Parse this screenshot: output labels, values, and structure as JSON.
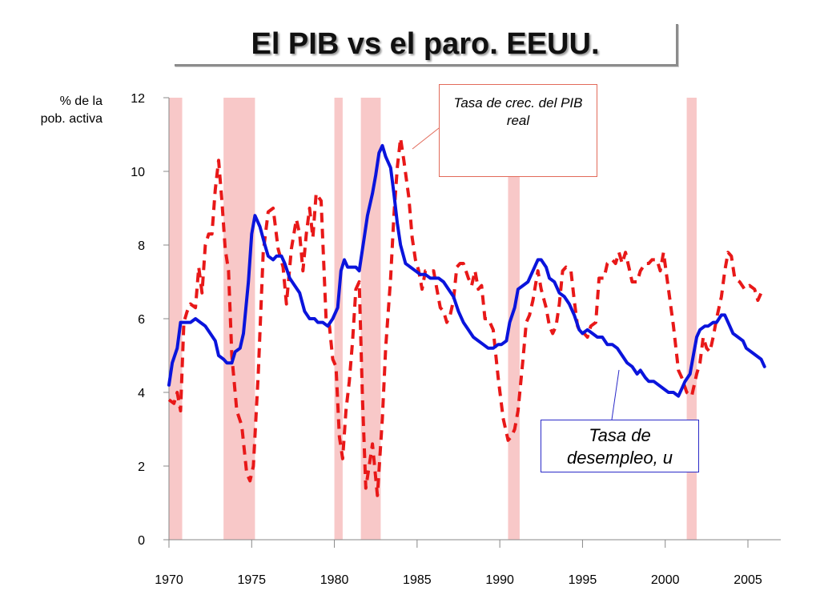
{
  "title": "El PIB vs el paro. EEUU.",
  "colors": {
    "unemployment": "#0a14dc",
    "gdp": "#e81818",
    "recession": "#f8c8c8"
  },
  "chart_data": {
    "type": "line",
    "ylabel": "% de la pob. activa",
    "xlabel": "",
    "x_ticks": [
      "1970",
      "1975",
      "1980",
      "1985",
      "1990",
      "1995",
      "2000",
      "2005"
    ],
    "y_ticks": [
      "0",
      "2",
      "4",
      "6",
      "8",
      "10",
      "12"
    ],
    "xlim": [
      1970,
      2007.5
    ],
    "ylim": [
      0,
      12
    ],
    "grid": false,
    "recession_periods": [
      [
        1970.0,
        1970.8
      ],
      [
        1973.3,
        1975.2
      ],
      [
        1980.0,
        1980.5
      ],
      [
        1981.6,
        1982.8
      ],
      [
        1990.5,
        1991.2
      ],
      [
        2001.3,
        2001.9
      ]
    ],
    "series": [
      {
        "name": "Tasa de crec. del PIB real",
        "style": "dashed",
        "points": [
          [
            1970.0,
            3.8
          ],
          [
            1970.3,
            3.7
          ],
          [
            1970.5,
            4.0
          ],
          [
            1970.7,
            3.5
          ],
          [
            1970.9,
            5.9
          ],
          [
            1971.1,
            6.2
          ],
          [
            1971.3,
            6.4
          ],
          [
            1971.6,
            6.3
          ],
          [
            1971.8,
            7.4
          ],
          [
            1972.0,
            6.7
          ],
          [
            1972.2,
            8.0
          ],
          [
            1972.4,
            8.3
          ],
          [
            1972.6,
            8.3
          ],
          [
            1972.8,
            9.5
          ],
          [
            1973.0,
            10.3
          ],
          [
            1973.2,
            9.2
          ],
          [
            1973.4,
            7.9
          ],
          [
            1973.6,
            7.3
          ],
          [
            1973.8,
            5.0
          ],
          [
            1974.1,
            3.5
          ],
          [
            1974.4,
            3.1
          ],
          [
            1974.7,
            1.8
          ],
          [
            1974.9,
            1.6
          ],
          [
            1975.1,
            2.0
          ],
          [
            1975.4,
            4.5
          ],
          [
            1975.7,
            7.8
          ],
          [
            1976.0,
            8.9
          ],
          [
            1976.3,
            9.0
          ],
          [
            1976.6,
            7.9
          ],
          [
            1976.9,
            7.4
          ],
          [
            1977.1,
            6.4
          ],
          [
            1977.4,
            7.9
          ],
          [
            1977.7,
            8.7
          ],
          [
            1977.9,
            8.3
          ],
          [
            1978.1,
            7.3
          ],
          [
            1978.3,
            8.3
          ],
          [
            1978.5,
            9.0
          ],
          [
            1978.7,
            8.2
          ],
          [
            1978.9,
            9.4
          ],
          [
            1979.2,
            9.2
          ],
          [
            1979.5,
            6.0
          ],
          [
            1979.7,
            5.8
          ],
          [
            1979.9,
            4.9
          ],
          [
            1980.1,
            4.7
          ],
          [
            1980.3,
            2.8
          ],
          [
            1980.5,
            2.2
          ],
          [
            1980.7,
            3.5
          ],
          [
            1980.9,
            4.3
          ],
          [
            1981.1,
            5.4
          ],
          [
            1981.3,
            6.8
          ],
          [
            1981.5,
            7.0
          ],
          [
            1981.7,
            3.8
          ],
          [
            1981.9,
            1.4
          ],
          [
            1982.1,
            2.0
          ],
          [
            1982.3,
            2.6
          ],
          [
            1982.6,
            1.2
          ],
          [
            1982.9,
            3.3
          ],
          [
            1983.1,
            5.2
          ],
          [
            1983.4,
            7.1
          ],
          [
            1983.6,
            8.8
          ],
          [
            1983.8,
            10.1
          ],
          [
            1984.0,
            10.9
          ],
          [
            1984.2,
            10.3
          ],
          [
            1984.5,
            9.3
          ],
          [
            1984.7,
            8.2
          ],
          [
            1984.9,
            7.6
          ],
          [
            1985.1,
            7.3
          ],
          [
            1985.3,
            6.8
          ],
          [
            1985.5,
            7.3
          ],
          [
            1985.8,
            7.3
          ],
          [
            1986.0,
            7.3
          ],
          [
            1986.2,
            6.8
          ],
          [
            1986.4,
            6.3
          ],
          [
            1986.6,
            6.2
          ],
          [
            1986.8,
            5.9
          ],
          [
            1987.0,
            6.1
          ],
          [
            1987.2,
            6.5
          ],
          [
            1987.4,
            7.4
          ],
          [
            1987.6,
            7.5
          ],
          [
            1987.8,
            7.5
          ],
          [
            1988.1,
            7.1
          ],
          [
            1988.3,
            6.9
          ],
          [
            1988.5,
            7.3
          ],
          [
            1988.7,
            6.8
          ],
          [
            1988.9,
            6.9
          ],
          [
            1989.1,
            6.0
          ],
          [
            1989.3,
            6.0
          ],
          [
            1989.6,
            5.7
          ],
          [
            1989.9,
            4.4
          ],
          [
            1990.2,
            3.3
          ],
          [
            1990.5,
            2.7
          ],
          [
            1990.7,
            2.8
          ],
          [
            1990.9,
            3.0
          ],
          [
            1991.1,
            3.5
          ],
          [
            1991.4,
            4.9
          ],
          [
            1991.6,
            5.9
          ],
          [
            1991.8,
            6.1
          ],
          [
            1992.0,
            6.5
          ],
          [
            1992.3,
            7.3
          ],
          [
            1992.5,
            6.8
          ],
          [
            1992.8,
            6.3
          ],
          [
            1993.0,
            5.8
          ],
          [
            1993.2,
            5.6
          ],
          [
            1993.4,
            5.8
          ],
          [
            1993.6,
            6.4
          ],
          [
            1993.8,
            7.3
          ],
          [
            1994.0,
            7.4
          ],
          [
            1994.3,
            7.3
          ],
          [
            1994.5,
            6.5
          ],
          [
            1994.7,
            5.8
          ],
          [
            1994.9,
            5.6
          ],
          [
            1995.1,
            5.6
          ],
          [
            1995.3,
            5.5
          ],
          [
            1995.5,
            5.8
          ],
          [
            1995.8,
            5.9
          ],
          [
            1996.0,
            7.1
          ],
          [
            1996.3,
            7.1
          ],
          [
            1996.5,
            7.5
          ],
          [
            1996.8,
            7.6
          ],
          [
            1997.0,
            7.5
          ],
          [
            1997.2,
            7.8
          ],
          [
            1997.4,
            7.5
          ],
          [
            1997.6,
            7.8
          ],
          [
            1997.8,
            7.4
          ],
          [
            1998.0,
            7.0
          ],
          [
            1998.3,
            7.0
          ],
          [
            1998.5,
            7.3
          ],
          [
            1998.8,
            7.5
          ],
          [
            1999.0,
            7.5
          ],
          [
            1999.2,
            7.6
          ],
          [
            1999.5,
            7.6
          ],
          [
            1999.7,
            7.3
          ],
          [
            1999.9,
            7.8
          ],
          [
            2000.2,
            6.8
          ],
          [
            2000.5,
            5.8
          ],
          [
            2000.8,
            4.6
          ],
          [
            2001.0,
            4.4
          ],
          [
            2001.3,
            4.0
          ],
          [
            2001.6,
            3.9
          ],
          [
            2001.9,
            4.5
          ],
          [
            2002.1,
            4.8
          ],
          [
            2002.3,
            5.5
          ],
          [
            2002.5,
            5.2
          ],
          [
            2002.7,
            5.1
          ],
          [
            2002.9,
            5.5
          ],
          [
            2003.1,
            6.0
          ],
          [
            2003.4,
            6.6
          ],
          [
            2003.6,
            7.3
          ],
          [
            2003.8,
            7.8
          ],
          [
            2004.0,
            7.7
          ],
          [
            2004.2,
            7.1
          ],
          [
            2004.5,
            7.0
          ],
          [
            2004.8,
            6.8
          ],
          [
            2005.1,
            6.9
          ],
          [
            2005.4,
            6.8
          ],
          [
            2005.6,
            6.5
          ],
          [
            2005.9,
            6.8
          ]
        ]
      },
      {
        "name": "Tasa de desempleo, u",
        "style": "solid",
        "points": [
          [
            1970.0,
            4.2
          ],
          [
            1970.2,
            4.8
          ],
          [
            1970.5,
            5.2
          ],
          [
            1970.7,
            5.9
          ],
          [
            1971.0,
            5.9
          ],
          [
            1971.3,
            5.9
          ],
          [
            1971.6,
            6.0
          ],
          [
            1971.9,
            5.9
          ],
          [
            1972.2,
            5.8
          ],
          [
            1972.5,
            5.6
          ],
          [
            1972.8,
            5.4
          ],
          [
            1973.0,
            5.0
          ],
          [
            1973.3,
            4.9
          ],
          [
            1973.5,
            4.8
          ],
          [
            1973.8,
            4.8
          ],
          [
            1974.0,
            5.1
          ],
          [
            1974.3,
            5.2
          ],
          [
            1974.5,
            5.6
          ],
          [
            1974.8,
            7.0
          ],
          [
            1975.0,
            8.3
          ],
          [
            1975.2,
            8.8
          ],
          [
            1975.5,
            8.5
          ],
          [
            1975.8,
            8.0
          ],
          [
            1976.0,
            7.7
          ],
          [
            1976.3,
            7.6
          ],
          [
            1976.5,
            7.7
          ],
          [
            1976.8,
            7.7
          ],
          [
            1977.0,
            7.5
          ],
          [
            1977.3,
            7.1
          ],
          [
            1977.6,
            6.9
          ],
          [
            1977.9,
            6.7
          ],
          [
            1978.2,
            6.2
          ],
          [
            1978.5,
            6.0
          ],
          [
            1978.8,
            6.0
          ],
          [
            1979.0,
            5.9
          ],
          [
            1979.3,
            5.9
          ],
          [
            1979.6,
            5.8
          ],
          [
            1979.9,
            6.0
          ],
          [
            1980.2,
            6.3
          ],
          [
            1980.4,
            7.3
          ],
          [
            1980.6,
            7.6
          ],
          [
            1980.8,
            7.4
          ],
          [
            1981.0,
            7.4
          ],
          [
            1981.3,
            7.4
          ],
          [
            1981.5,
            7.3
          ],
          [
            1981.8,
            8.2
          ],
          [
            1982.0,
            8.8
          ],
          [
            1982.3,
            9.4
          ],
          [
            1982.5,
            9.9
          ],
          [
            1982.7,
            10.5
          ],
          [
            1982.9,
            10.7
          ],
          [
            1983.1,
            10.4
          ],
          [
            1983.4,
            10.1
          ],
          [
            1983.6,
            9.4
          ],
          [
            1983.8,
            8.6
          ],
          [
            1984.0,
            8.0
          ],
          [
            1984.3,
            7.5
          ],
          [
            1984.6,
            7.4
          ],
          [
            1984.9,
            7.3
          ],
          [
            1985.2,
            7.2
          ],
          [
            1985.5,
            7.2
          ],
          [
            1985.8,
            7.1
          ],
          [
            1986.0,
            7.1
          ],
          [
            1986.3,
            7.1
          ],
          [
            1986.6,
            7.0
          ],
          [
            1986.9,
            6.8
          ],
          [
            1987.2,
            6.6
          ],
          [
            1987.5,
            6.2
          ],
          [
            1987.8,
            5.9
          ],
          [
            1988.1,
            5.7
          ],
          [
            1988.4,
            5.5
          ],
          [
            1988.7,
            5.4
          ],
          [
            1989.0,
            5.3
          ],
          [
            1989.3,
            5.2
          ],
          [
            1989.6,
            5.2
          ],
          [
            1989.9,
            5.3
          ],
          [
            1990.1,
            5.3
          ],
          [
            1990.4,
            5.4
          ],
          [
            1990.6,
            5.9
          ],
          [
            1990.9,
            6.3
          ],
          [
            1991.1,
            6.8
          ],
          [
            1991.4,
            6.9
          ],
          [
            1991.7,
            7.0
          ],
          [
            1992.0,
            7.3
          ],
          [
            1992.3,
            7.6
          ],
          [
            1992.5,
            7.6
          ],
          [
            1992.8,
            7.4
          ],
          [
            1993.0,
            7.1
          ],
          [
            1993.3,
            7.0
          ],
          [
            1993.6,
            6.7
          ],
          [
            1993.9,
            6.6
          ],
          [
            1994.2,
            6.4
          ],
          [
            1994.5,
            6.1
          ],
          [
            1994.8,
            5.7
          ],
          [
            1995.0,
            5.6
          ],
          [
            1995.3,
            5.7
          ],
          [
            1995.6,
            5.6
          ],
          [
            1995.9,
            5.5
          ],
          [
            1996.2,
            5.5
          ],
          [
            1996.5,
            5.3
          ],
          [
            1996.8,
            5.3
          ],
          [
            1997.1,
            5.2
          ],
          [
            1997.4,
            5.0
          ],
          [
            1997.7,
            4.8
          ],
          [
            1998.0,
            4.7
          ],
          [
            1998.3,
            4.5
          ],
          [
            1998.5,
            4.6
          ],
          [
            1998.8,
            4.4
          ],
          [
            1999.0,
            4.3
          ],
          [
            1999.3,
            4.3
          ],
          [
            1999.6,
            4.2
          ],
          [
            1999.9,
            4.1
          ],
          [
            2000.2,
            4.0
          ],
          [
            2000.5,
            4.0
          ],
          [
            2000.8,
            3.9
          ],
          [
            2001.0,
            4.1
          ],
          [
            2001.2,
            4.3
          ],
          [
            2001.5,
            4.5
          ],
          [
            2001.7,
            5.0
          ],
          [
            2001.9,
            5.5
          ],
          [
            2002.1,
            5.7
          ],
          [
            2002.4,
            5.8
          ],
          [
            2002.6,
            5.8
          ],
          [
            2002.9,
            5.9
          ],
          [
            2003.1,
            5.9
          ],
          [
            2003.4,
            6.1
          ],
          [
            2003.6,
            6.1
          ],
          [
            2003.9,
            5.8
          ],
          [
            2004.1,
            5.6
          ],
          [
            2004.4,
            5.5
          ],
          [
            2004.7,
            5.4
          ],
          [
            2004.9,
            5.2
          ],
          [
            2005.2,
            5.1
          ],
          [
            2005.5,
            5.0
          ],
          [
            2005.8,
            4.9
          ],
          [
            2006.0,
            4.7
          ]
        ]
      }
    ]
  }
}
